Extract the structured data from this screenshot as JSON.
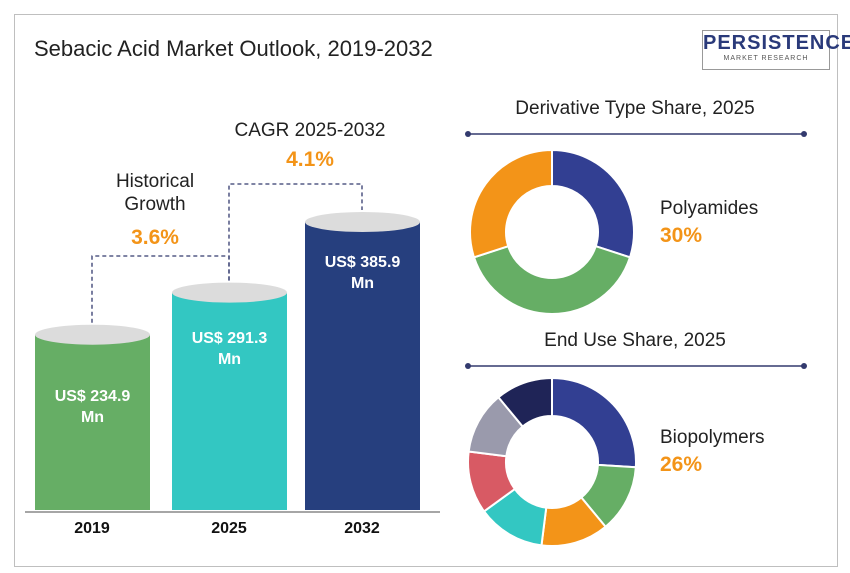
{
  "title": "Sebacic Acid Market Outlook, 2019-2032",
  "logo": {
    "name": "PERSISTENCE",
    "tagline": "MARKET RESEARCH"
  },
  "colors": {
    "green": "#66ae65",
    "teal": "#33c7c2",
    "navy": "#263f7e",
    "orange": "#f39418",
    "blue": "#323f92"
  },
  "chart_data": [
    {
      "type": "bar",
      "categories": [
        "2019",
        "2025",
        "2032"
      ],
      "values": [
        234.9,
        291.3,
        385.9
      ],
      "value_labels": [
        [
          "US$ 234.9",
          "Mn"
        ],
        [
          "US$ 291.3",
          "Mn"
        ],
        [
          "US$ 385.9",
          "Mn"
        ]
      ],
      "annotations": {
        "historical_label": [
          "Historical",
          "Growth"
        ],
        "historical_value": "3.6%",
        "cagr_label": "CAGR 2025-2032",
        "cagr_value": "4.1%"
      }
    },
    {
      "type": "pie",
      "title": "Derivative Type Share, 2025",
      "highlight_label": "Polyamides",
      "highlight_value": "30%",
      "values": [
        30,
        40,
        30
      ],
      "colors": [
        "#323f92",
        "#66ae65",
        "#f39418"
      ]
    },
    {
      "type": "pie",
      "title": "End Use Share, 2025",
      "highlight_label": "Biopolymers",
      "highlight_value": "26%",
      "values": [
        26,
        13,
        13,
        13,
        12,
        12,
        11
      ],
      "colors": [
        "#323f92",
        "#66ae65",
        "#f39418",
        "#33c7c2",
        "#d85a64",
        "#9a9aac",
        "#1f2457"
      ]
    }
  ]
}
